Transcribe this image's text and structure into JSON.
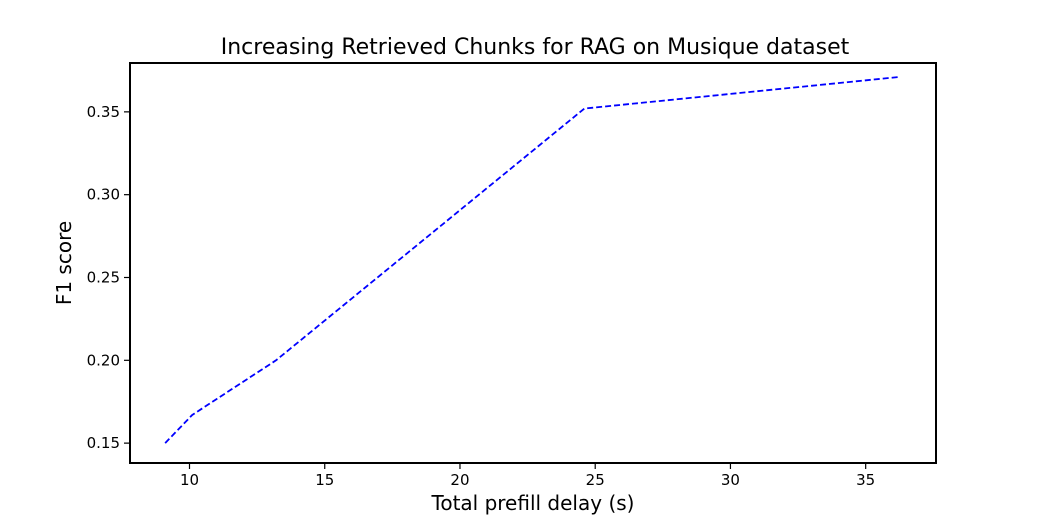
{
  "chart_data": {
    "type": "line",
    "title": "Increasing Retrieved Chunks for RAG on Musique dataset",
    "xlabel": "Total prefill delay (s)",
    "ylabel": "F1 score",
    "xlim": [
      7.8,
      37.6
    ],
    "ylim": [
      0.138,
      0.3795
    ],
    "xticks": [
      10,
      15,
      20,
      25,
      30,
      35
    ],
    "yticks": [
      0.15,
      0.2,
      0.25,
      0.3,
      0.35
    ],
    "xtick_labels": [
      "10",
      "15",
      "20",
      "25",
      "30",
      "35"
    ],
    "ytick_labels": [
      "0.15",
      "0.20",
      "0.25",
      "0.30",
      "0.35"
    ],
    "grid": false,
    "series": [
      {
        "color": "#0000ff",
        "linestyle": "dashed",
        "x": [
          9.1,
          10.1,
          13.2,
          24.6,
          36.2
        ],
        "y": [
          0.15,
          0.167,
          0.2,
          0.352,
          0.371
        ]
      }
    ]
  }
}
